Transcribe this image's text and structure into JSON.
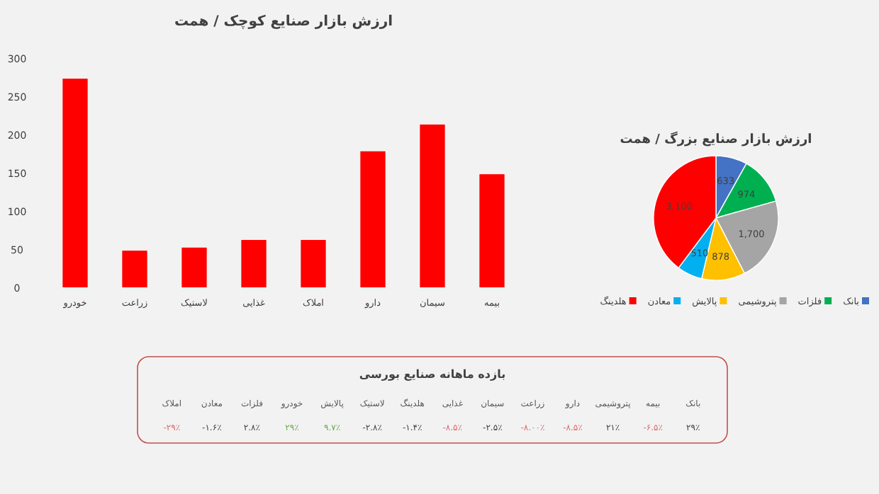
{
  "chart_data": [
    {
      "type": "bar",
      "title": "ارزش بازار صنایع کوچک / همت",
      "categories": [
        "خودرو",
        "زراعت",
        "لاستیک",
        "غذایی",
        "املاک",
        "دارو",
        "سیمان",
        "بیمه"
      ],
      "values": [
        273,
        48,
        52,
        62,
        62,
        178,
        213,
        148
      ],
      "color": "#ff0000",
      "ylim": [
        0,
        300
      ],
      "yticks": [
        0,
        50,
        100,
        150,
        200,
        250,
        300
      ],
      "grid": false
    },
    {
      "type": "pie",
      "title": "ارزش بازار صنایع بزرگ / همت",
      "categories": [
        "بانک",
        "فلزات",
        "پتروشیمی",
        "پالایش",
        "معادن",
        "هلدینگ"
      ],
      "values": [
        633,
        974,
        1700,
        878,
        510,
        3100
      ],
      "colors": [
        "#4472c4",
        "#00b050",
        "#a5a5a5",
        "#ffc000",
        "#00b0f0",
        "#ff0000"
      ],
      "value_labels": [
        "633",
        "974",
        "1,700",
        "878",
        "510",
        "3,100"
      ],
      "legend": "bottom"
    },
    {
      "type": "other",
      "title": "بازده ماهانه صنایع بورسی",
      "categories": [
        "املاک",
        "معادن",
        "فلزات",
        "خودرو",
        "پالایش",
        "لاستیک",
        "هلدینگ",
        "غذایی",
        "سیمان",
        "زراعت",
        "دارو",
        "پتروشیمی",
        "بیمه",
        "بانک"
      ],
      "value_labels": [
        "-۲۹٪",
        "-۱.۶٪",
        "۲.۸٪",
        "۲۹٪",
        "۹.۷٪",
        "-۲.۸٪",
        "-۱.۴٪",
        "-۸.۵٪",
        "-۲.۵٪",
        "-۸.۰۰٪",
        "-۸.۵٪",
        "۲۱٪",
        "-۶.۵٪",
        "۲۹٪"
      ],
      "colors": [
        "#e06666",
        "#404040",
        "#404040",
        "#6aa84f",
        "#6aa84f",
        "#404040",
        "#404040",
        "#e06666",
        "#404040",
        "#e06666",
        "#e06666",
        "#404040",
        "#e06666",
        "#404040"
      ]
    }
  ]
}
